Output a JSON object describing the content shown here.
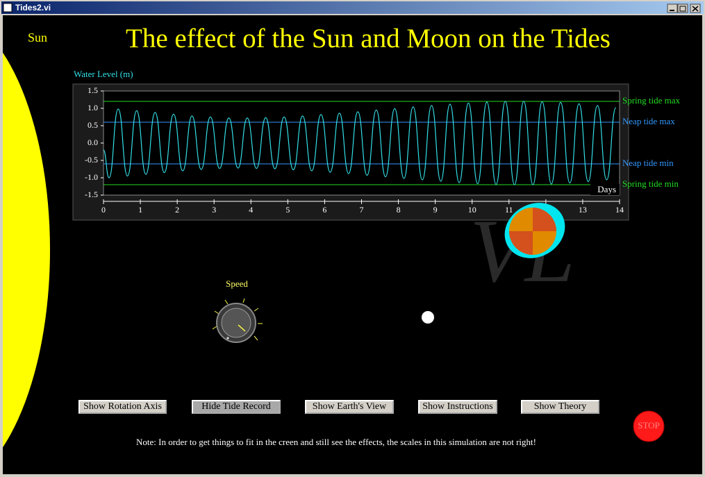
{
  "window": {
    "title": "Tides2.vi"
  },
  "sun_label": "Sun",
  "title": "The effect of the Sun and Moon on the Tides",
  "chart_data": {
    "type": "line",
    "y_label": "Water Level (m)",
    "x_label": "Days",
    "x": [
      0,
      0.15,
      0.4,
      0.65,
      0.9,
      1.15,
      1.4,
      1.65,
      1.9,
      2.15,
      2.4,
      2.65,
      2.9,
      3.15,
      3.4,
      3.65,
      3.9,
      4.15,
      4.4,
      4.65,
      4.9,
      5.15,
      5.4,
      5.65,
      5.9,
      6.15,
      6.4,
      6.65,
      6.9,
      7.15,
      7.4,
      7.65,
      7.9,
      8.15,
      8.4,
      8.65,
      8.9,
      9.15,
      9.4,
      9.65,
      9.9,
      10.15,
      10.4,
      10.65,
      10.9,
      11.15,
      11.4,
      11.65,
      11.9,
      12.15,
      12.4,
      12.65,
      12.9,
      13.15,
      13.4,
      13.65,
      13.9
    ],
    "series": [
      {
        "color": "#33e0e8",
        "values": [
          -0.2,
          -1.0,
          0.98,
          -0.95,
          0.93,
          -0.9,
          0.88,
          -0.85,
          0.83,
          -0.8,
          0.78,
          -0.76,
          0.75,
          -0.73,
          0.72,
          -0.72,
          0.72,
          -0.73,
          0.73,
          -0.74,
          0.75,
          -0.77,
          0.78,
          -0.8,
          0.82,
          -0.84,
          0.86,
          -0.88,
          0.9,
          -0.93,
          0.95,
          -0.97,
          0.99,
          -1.02,
          1.04,
          -1.06,
          1.08,
          -1.1,
          1.12,
          -1.14,
          1.15,
          -1.17,
          1.18,
          -1.19,
          1.2,
          -1.2,
          1.2,
          -1.2,
          1.19,
          -1.18,
          1.17,
          -1.15,
          1.13,
          -1.11,
          1.08,
          -1.06,
          1.02
        ]
      }
    ],
    "reference_lines": [
      {
        "label": "Spring tide max",
        "value": 1.2,
        "color": "#22dd22"
      },
      {
        "label": "Neap tide max",
        "value": 0.6,
        "color": "#3399ff"
      },
      {
        "label": "Neap tide min",
        "value": -0.6,
        "color": "#3399ff"
      },
      {
        "label": "Spring tide min",
        "value": -1.2,
        "color": "#22dd22"
      }
    ],
    "xlim": [
      0,
      14
    ],
    "xticks": [
      0,
      1,
      2,
      3,
      4,
      5,
      6,
      7,
      8,
      9,
      10,
      11,
      12,
      13,
      14
    ],
    "ylim": [
      -1.5,
      1.5
    ],
    "yticks": [
      -1.5,
      {
        "value": -1,
        "label": "-1.0"
      },
      -0.5,
      {
        "value": 0,
        "label": "0.0"
      },
      0.5,
      {
        "value": 1,
        "label": "1.0"
      },
      1.5
    ]
  },
  "controls": {
    "speed_label": "Speed",
    "buttons": [
      "Show Rotation Axis",
      "Hide Tide Record",
      "Show Earth's View",
      "Show Instructions",
      "Show Theory"
    ]
  },
  "note": "Note: In order to get things to fit in the creen and still see the effects, the scales in this simulation are not right!",
  "stop": "STOP"
}
